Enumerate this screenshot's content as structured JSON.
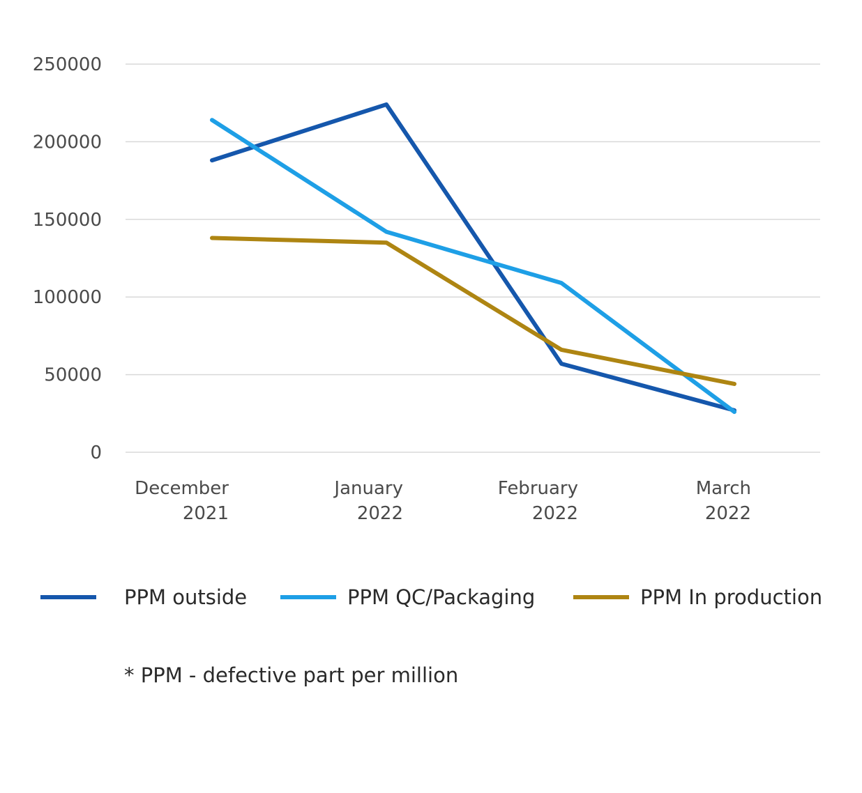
{
  "chart_data": {
    "type": "line",
    "title": "",
    "xlabel": "",
    "ylabel": "",
    "categories": [
      [
        "December",
        "2021"
      ],
      [
        "January",
        "2022"
      ],
      [
        "February",
        "2022"
      ],
      [
        "March",
        "2022"
      ]
    ],
    "ylim": [
      0,
      250000
    ],
    "yticks": [
      "0",
      "50000",
      "100000",
      "150000",
      "200000",
      "250000"
    ],
    "grid": true,
    "legend_position": "bottom",
    "series": [
      {
        "name": "PPM outside",
        "color": "#1557AC",
        "values": [
          188000,
          224000,
          57000,
          27000
        ]
      },
      {
        "name": "PPM QC/Packaging",
        "color": "#1E9FE6",
        "values": [
          214000,
          142000,
          109000,
          26000
        ]
      },
      {
        "name": "PPM In production",
        "color": "#AE8512",
        "values": [
          138000,
          135000,
          66000,
          44000
        ]
      }
    ],
    "footnote": "* PPM - defective part per million"
  }
}
